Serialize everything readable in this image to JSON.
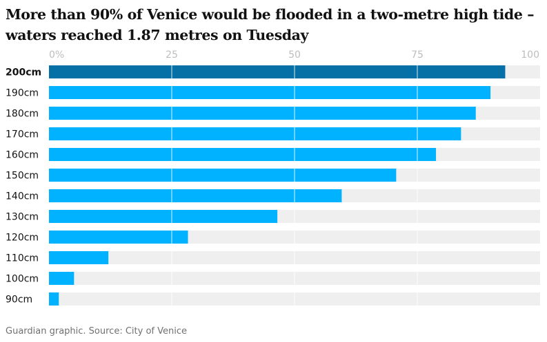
{
  "title": {
    "line1": "More than 90% of Venice would be flooded in a two-metre high tide –",
    "line2": "waters reached 1.87 metres on Tuesday"
  },
  "source": "Guardian graphic. Source: City of Venice",
  "colors": {
    "highlight_bar": "#0570a6",
    "bar": "#00b2ff",
    "track": "#efefef",
    "tick_label": "#bdbdbd",
    "category_label": "#121212",
    "gridline": "#ffffff"
  },
  "chart_data": {
    "type": "bar",
    "orientation": "horizontal",
    "xlim": [
      0,
      100
    ],
    "x_ticks": [
      "0%",
      "25",
      "50",
      "75",
      "100"
    ],
    "x_tick_values": [
      0,
      25,
      50,
      75,
      100
    ],
    "categories": [
      "200cm",
      "190cm",
      "180cm",
      "170cm",
      "160cm",
      "150cm",
      "140cm",
      "130cm",
      "120cm",
      "110cm",
      "100cm",
      "90cm"
    ],
    "values": [
      92.9,
      89.9,
      86.9,
      83.9,
      78.8,
      70.7,
      59.6,
      46.5,
      28.3,
      12.1,
      5.1,
      2.0
    ],
    "highlight_category": "200cm",
    "grid": true
  }
}
